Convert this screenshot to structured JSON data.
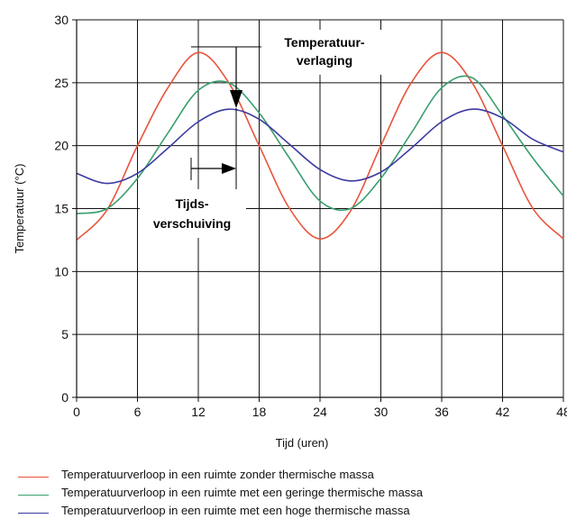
{
  "chart_data": {
    "type": "line",
    "title": "",
    "xlabel": "Tijd (uren)",
    "ylabel": "Temperatuur (°C)",
    "xlim": [
      0,
      48
    ],
    "ylim": [
      0,
      30
    ],
    "x_ticks": [
      0,
      6,
      12,
      18,
      24,
      30,
      36,
      42,
      48
    ],
    "y_ticks": [
      0,
      5,
      10,
      15,
      20,
      25,
      30
    ],
    "grid": true,
    "legend_position": "bottom",
    "series": [
      {
        "name": "Temperatuurverloop in een ruimte zonder thermische massa",
        "color": "#e8533a",
        "x": [
          0,
          3,
          6,
          9,
          12,
          15,
          18,
          21,
          24,
          27,
          30,
          33,
          36,
          39,
          42,
          45,
          48
        ],
        "y": [
          12.5,
          14.9,
          20.0,
          24.6,
          27.4,
          25.0,
          20.0,
          15.0,
          12.6,
          14.8,
          20.0,
          25.0,
          27.4,
          25.0,
          20.0,
          15.0,
          12.6
        ]
      },
      {
        "name": "Temperatuurverloop in een ruimte met een geringe thermische massa",
        "color": "#3a9e6e",
        "x": [
          0,
          3,
          6,
          9,
          12,
          15,
          18,
          21,
          24,
          27,
          30,
          33,
          36,
          39,
          42,
          45,
          48
        ],
        "y": [
          14.6,
          15.0,
          17.4,
          21.0,
          24.4,
          25.0,
          22.6,
          19.0,
          15.6,
          15.0,
          17.4,
          21.0,
          24.6,
          25.4,
          22.4,
          19.0,
          16.0
        ]
      },
      {
        "name": "Temperatuurverloop in een ruimte met een hoge thermische massa",
        "color": "#3a3aa0",
        "x": [
          0,
          3,
          6,
          9,
          12,
          15,
          18,
          21,
          24,
          27,
          30,
          33,
          36,
          39,
          42,
          45,
          48
        ],
        "y": [
          17.8,
          17.0,
          17.8,
          19.8,
          21.9,
          22.9,
          22.1,
          20.1,
          18.1,
          17.2,
          17.9,
          19.8,
          21.9,
          22.9,
          22.2,
          20.5,
          19.5
        ]
      }
    ],
    "annotations": {
      "reduction": "Temperatuur-\nverlaging",
      "shift": "Tijds-\nverschuiving"
    }
  }
}
